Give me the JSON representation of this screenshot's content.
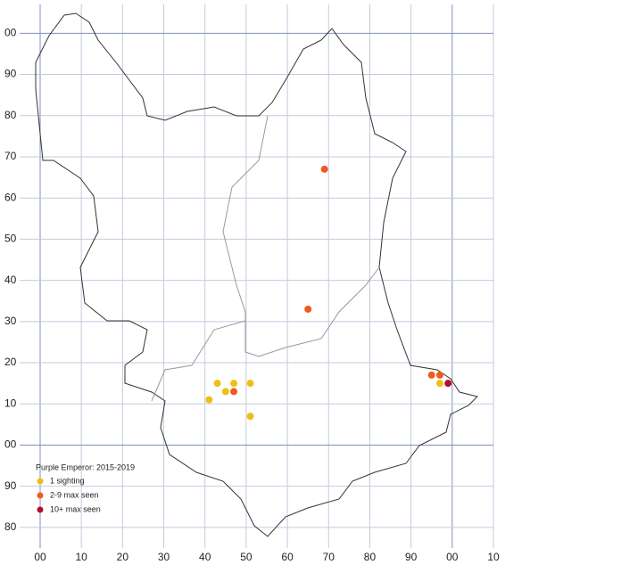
{
  "chart_data": {
    "type": "scatter",
    "title": "Purple Emperor:  2015-2019",
    "xlim": [
      0,
      110
    ],
    "ylim": [
      75,
      207
    ],
    "xticks": [
      {
        "value": 0,
        "label": "00"
      },
      10,
      20,
      30,
      40,
      50,
      60,
      70,
      80,
      90,
      {
        "value": 100,
        "label": "00"
      },
      {
        "value": 110,
        "label": "10"
      }
    ],
    "yticks": [
      80,
      90,
      {
        "value": 100,
        "label": "00"
      },
      {
        "value": 110,
        "label": "10"
      },
      {
        "value": 120,
        "label": "20"
      },
      {
        "value": 130,
        "label": "30"
      },
      {
        "value": 140,
        "label": "40"
      },
      {
        "value": 150,
        "label": "50"
      },
      {
        "value": 160,
        "label": "60"
      },
      {
        "value": 170,
        "label": "70"
      },
      {
        "value": 180,
        "label": "80"
      },
      {
        "value": 190,
        "label": "90"
      },
      {
        "value": 200,
        "label": "00"
      }
    ],
    "grid": true,
    "series": [
      {
        "name": "1 sighting",
        "color": "#f2be12",
        "x": [
          43,
          47,
          51,
          45,
          41,
          51,
          97
        ],
        "values": [
          115,
          115,
          115,
          113,
          111,
          107,
          115
        ]
      },
      {
        "name": "2-9 max seen",
        "color": "#f05a1e",
        "x": [
          69,
          65,
          47,
          95,
          97
        ],
        "values": [
          167,
          133,
          113,
          117,
          117
        ]
      },
      {
        "name": "10+ max seen",
        "color": "#b01030",
        "x": [
          99
        ],
        "values": [
          115
        ]
      }
    ]
  }
}
